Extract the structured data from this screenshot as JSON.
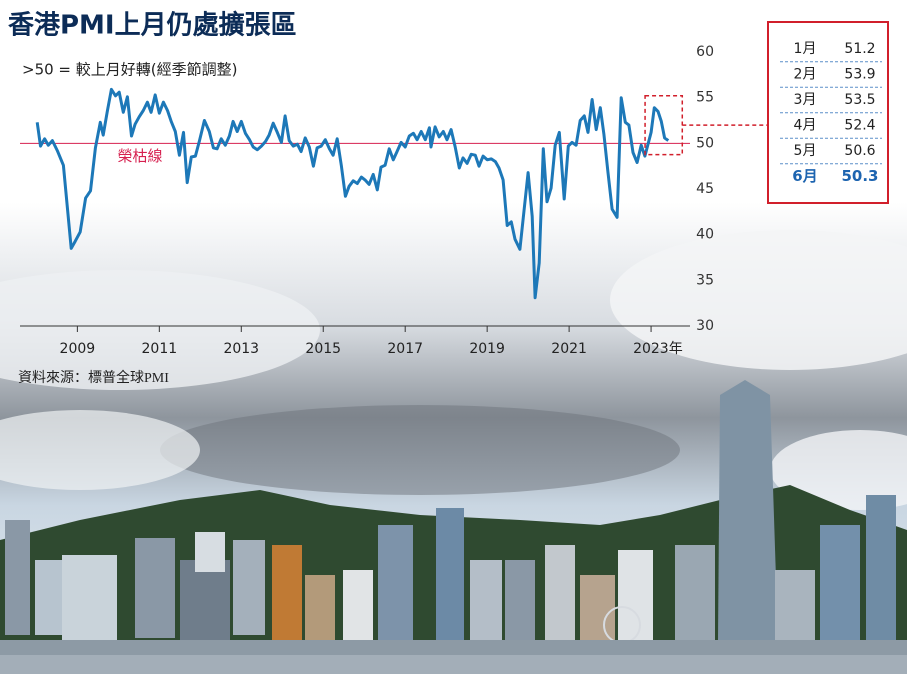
{
  "chart_data": {
    "type": "line",
    "title": "香港PMI上月仍處擴張區",
    "subtitle": ">50 = 較上月好轉(經季節調整)",
    "reference_line": {
      "value": 50,
      "label": "榮枯線",
      "color": "#d6204f"
    },
    "source": "資料來源：標普全球PMI",
    "color": "#1d78b8",
    "x": [
      2008.02,
      2008.1,
      2008.2,
      2008.29,
      2008.39,
      2008.51,
      2008.66,
      2008.85,
      2008.95,
      2009.07,
      2009.2,
      2009.32,
      2009.44,
      2009.56,
      2009.63,
      2009.73,
      2009.83,
      2009.93,
      2010.02,
      2010.12,
      2010.22,
      2010.32,
      2010.41,
      2010.51,
      2010.61,
      2010.71,
      2010.8,
      2010.9,
      2011.0,
      2011.1,
      2011.2,
      2011.29,
      2011.39,
      2011.49,
      2011.59,
      2011.68,
      2011.78,
      2011.88,
      2011.98,
      2012.1,
      2012.22,
      2012.32,
      2012.41,
      2012.51,
      2012.61,
      2012.71,
      2012.8,
      2012.9,
      2013.0,
      2013.1,
      2013.2,
      2013.29,
      2013.39,
      2013.49,
      2013.59,
      2013.68,
      2013.78,
      2013.88,
      2013.98,
      2014.07,
      2014.17,
      2014.27,
      2014.37,
      2014.46,
      2014.56,
      2014.66,
      2014.76,
      2014.85,
      2014.95,
      2015.05,
      2015.15,
      2015.24,
      2015.34,
      2015.44,
      2015.54,
      2015.63,
      2015.73,
      2015.83,
      2015.93,
      2016.02,
      2016.12,
      2016.22,
      2016.32,
      2016.41,
      2016.51,
      2016.61,
      2016.71,
      2016.8,
      2016.9,
      2017.0,
      2017.1,
      2017.2,
      2017.29,
      2017.39,
      2017.49,
      2017.59,
      2017.63,
      2017.73,
      2017.83,
      2017.93,
      2018.02,
      2018.12,
      2018.22,
      2018.32,
      2018.41,
      2018.51,
      2018.61,
      2018.71,
      2018.8,
      2018.9,
      2019.0,
      2019.1,
      2019.2,
      2019.29,
      2019.39,
      2019.49,
      2019.59,
      2019.68,
      2019.8,
      2019.9,
      2020.0,
      2020.1,
      2020.17,
      2020.27,
      2020.37,
      2020.46,
      2020.56,
      2020.66,
      2020.76,
      2020.88,
      2020.98,
      2021.07,
      2021.17,
      2021.27,
      2021.37,
      2021.46,
      2021.56,
      2021.66,
      2021.76,
      2021.85,
      2021.95,
      2022.05,
      2022.17,
      2022.27,
      2022.37,
      2022.46,
      2022.56,
      2022.66,
      2022.76,
      2022.85,
      2023.0,
      2023.08,
      2023.17,
      2023.25,
      2023.33,
      2023.42
    ],
    "values": [
      52.3,
      49.7,
      50.5,
      49.8,
      50.3,
      49.2,
      47.6,
      38.5,
      39.3,
      40.3,
      44.0,
      44.8,
      49.5,
      52.3,
      50.9,
      53.5,
      55.9,
      55.2,
      55.6,
      53.4,
      55.1,
      50.8,
      52.1,
      52.9,
      53.6,
      54.5,
      53.4,
      55.3,
      53.3,
      54.5,
      53.6,
      52.4,
      51.3,
      48.7,
      51.2,
      45.7,
      48.5,
      48.6,
      50.3,
      52.5,
      51.3,
      49.5,
      49.4,
      50.5,
      49.8,
      50.8,
      52.4,
      51.3,
      52.4,
      51.1,
      50.4,
      49.6,
      49.3,
      49.7,
      50.2,
      50.9,
      52.2,
      51.2,
      50.1,
      53.0,
      50.3,
      49.7,
      49.9,
      49.1,
      50.6,
      49.6,
      47.5,
      49.5,
      49.7,
      50.4,
      49.4,
      48.7,
      50.5,
      47.6,
      44.2,
      45.3,
      45.9,
      45.6,
      46.3,
      46.0,
      45.5,
      46.6,
      44.9,
      47.4,
      47.6,
      49.4,
      48.2,
      49.1,
      50.1,
      49.6,
      50.8,
      51.1,
      50.4,
      51.3,
      50.4,
      51.7,
      49.6,
      51.8,
      50.7,
      51.3,
      50.4,
      51.5,
      49.6,
      47.3,
      48.4,
      47.8,
      48.8,
      48.7,
      47.5,
      48.6,
      48.2,
      48.3,
      48.0,
      47.3,
      46.0,
      41.0,
      41.4,
      39.5,
      38.4,
      42.6,
      46.8,
      42.0,
      33.1,
      36.9,
      49.4,
      43.6,
      45.1,
      49.8,
      51.2,
      43.9,
      49.7,
      50.1,
      49.8,
      52.5,
      53.0,
      51.2,
      54.8,
      51.5,
      53.9,
      51.0,
      46.8,
      42.8,
      41.9,
      55.0,
      52.3,
      52.0,
      49.0,
      47.9,
      49.8,
      48.6,
      51.2,
      53.9,
      53.5,
      52.4,
      50.6,
      50.3
    ],
    "xlim": [
      2007.6,
      2023.95
    ],
    "xticks": [
      2009,
      2011,
      2013,
      2015,
      2017,
      2019,
      2021,
      {
        "value": 2023,
        "label": "2023年"
      }
    ],
    "ylim": [
      30,
      60
    ],
    "yticks": [
      30,
      35,
      40,
      45,
      50,
      55,
      60
    ],
    "grid": false
  },
  "table": {
    "rows": [
      [
        "1月",
        51.2
      ],
      [
        "2月",
        53.9
      ],
      [
        "3月",
        53.5
      ],
      [
        "4月",
        52.4
      ],
      [
        "5月",
        50.6
      ],
      [
        "6月",
        50.3
      ]
    ]
  }
}
